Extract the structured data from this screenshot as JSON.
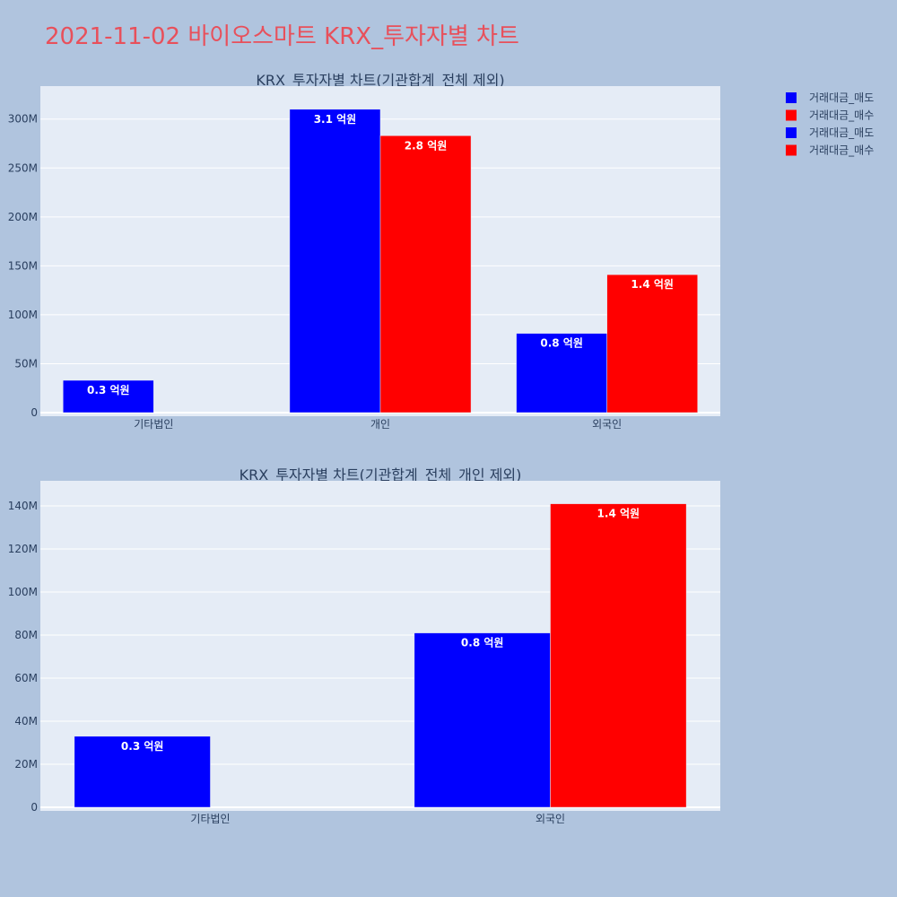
{
  "title": "2021-11-02 바이오스마트 KRX_투자자별 차트",
  "colors": {
    "sell": "#0000ff",
    "buy": "#ff0000"
  },
  "legend": {
    "placement": "top-right",
    "items": [
      {
        "label": "거래대금_매도",
        "color": "#0000ff"
      },
      {
        "label": "거래대금_매수",
        "color": "#ff0000"
      },
      {
        "label": "거래대금_매도",
        "color": "#0000ff"
      },
      {
        "label": "거래대금_매수",
        "color": "#ff0000"
      }
    ]
  },
  "chart_data": [
    {
      "type": "bar",
      "title": "KRX_투자자별 차트(기관합계_전체 제외)",
      "categories": [
        "기타법인",
        "개인",
        "외국인"
      ],
      "series": [
        {
          "name": "거래대금_매도",
          "color": "#0000ff",
          "values": [
            33000000,
            310000000,
            81000000
          ],
          "labels": [
            "0.3 억원",
            "3.1 억원",
            "0.8 억원"
          ]
        },
        {
          "name": "거래대금_매수",
          "color": "#ff0000",
          "values": [
            0,
            283000000,
            141000000
          ],
          "labels": [
            "",
            "2.8 억원",
            "1.4 억원"
          ]
        }
      ],
      "ylim": [
        0,
        330000000
      ],
      "yticks": [
        0,
        50000000,
        100000000,
        150000000,
        200000000,
        250000000,
        300000000
      ],
      "ytick_labels": [
        "0",
        "50M",
        "100M",
        "150M",
        "200M",
        "250M",
        "300M"
      ],
      "grid": true
    },
    {
      "type": "bar",
      "title": "KRX_투자자별 차트(기관합계_전체_개인 제외)",
      "categories": [
        "기타법인",
        "외국인"
      ],
      "series": [
        {
          "name": "거래대금_매도",
          "color": "#0000ff",
          "values": [
            33000000,
            81000000
          ],
          "labels": [
            "0.3 억원",
            "0.8 억원"
          ]
        },
        {
          "name": "거래대금_매수",
          "color": "#ff0000",
          "values": [
            0,
            141000000
          ],
          "labels": [
            "",
            "1.4 억원"
          ]
        }
      ],
      "ylim": [
        0,
        150000000
      ],
      "yticks": [
        0,
        20000000,
        40000000,
        60000000,
        80000000,
        100000000,
        120000000,
        140000000
      ],
      "ytick_labels": [
        "0",
        "20M",
        "40M",
        "60M",
        "80M",
        "100M",
        "120M",
        "140M"
      ],
      "grid": true
    }
  ]
}
